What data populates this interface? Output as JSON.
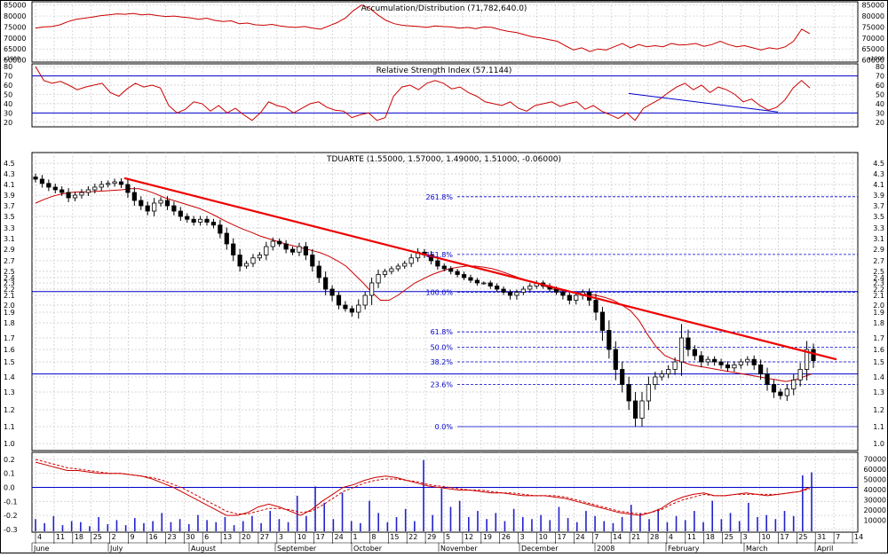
{
  "chart_data": [
    {
      "panel": "ad",
      "type": "line",
      "title": "Accumulation/Distribution (71,782,640.0)",
      "y_ticks": [
        85000,
        80000,
        75000,
        70000,
        65000,
        60000
      ],
      "y_tick_labels": [
        "85000",
        "80000",
        "75000",
        "70000",
        "65000",
        "60000"
      ],
      "y_unit_label": "x1000",
      "ylim": [
        59000,
        86500
      ],
      "series": [
        {
          "color": "#cc0000",
          "values": [
            74500,
            75000,
            75200,
            76000,
            77500,
            78500,
            79000,
            79500,
            80200,
            80500,
            81000,
            80800,
            81200,
            80500,
            80800,
            80200,
            79800,
            80000,
            79500,
            79200,
            78500,
            79000,
            78000,
            77500,
            77800,
            76500,
            76800,
            76000,
            75800,
            76200,
            75500,
            75000,
            74800,
            75200,
            74500,
            74000,
            75500,
            77000,
            79000,
            82500,
            85000,
            83500,
            80500,
            78000,
            76500,
            75800,
            75500,
            75200,
            74800,
            75500,
            75200,
            75000,
            74500,
            74800,
            74200,
            75000,
            74800,
            73800,
            73000,
            72500,
            71500,
            70500,
            70000,
            69200,
            68500,
            66500,
            64500,
            65500,
            63800,
            65000,
            64500,
            66000,
            67500,
            65500,
            67000,
            66000,
            66500,
            66000,
            67500,
            66800,
            67000,
            67500,
            66200,
            67000,
            68500,
            67000,
            66000,
            66500,
            65500,
            64500,
            65500,
            65000,
            66000,
            68500,
            74000,
            72000
          ]
        }
      ]
    },
    {
      "panel": "rsi",
      "type": "line",
      "title": "Relative Strength Index (57.1144)",
      "y_ticks": [
        80,
        70,
        60,
        50,
        40,
        30,
        20
      ],
      "y_tick_labels": [
        "80",
        "70",
        "60",
        "50",
        "40",
        "30",
        "20"
      ],
      "ylim": [
        15,
        83
      ],
      "reference_lines": [
        70,
        30
      ],
      "series": [
        {
          "color": "#cc0000",
          "values": [
            80,
            65,
            62,
            64,
            60,
            55,
            58,
            60,
            62,
            52,
            48,
            56,
            62,
            58,
            60,
            57,
            38,
            30,
            34,
            42,
            40,
            32,
            38,
            30,
            35,
            28,
            22,
            30,
            42,
            38,
            36,
            30,
            35,
            40,
            42,
            36,
            33,
            32,
            25,
            28,
            30,
            22,
            25,
            48,
            58,
            60,
            55,
            62,
            65,
            62,
            56,
            58,
            52,
            48,
            42,
            40,
            38,
            42,
            35,
            32,
            38,
            40,
            42,
            37,
            40,
            42,
            34,
            38,
            32,
            28,
            24,
            30,
            22,
            35,
            40,
            45,
            52,
            58,
            62,
            55,
            60,
            52,
            58,
            55,
            50,
            42,
            45,
            38,
            33,
            36,
            44,
            57,
            65,
            57
          ]
        },
        {
          "color": "#0000cc",
          "name": "",
          "values": [
            51,
            31
          ]
        }
      ]
    },
    {
      "panel": "price",
      "type": "candlestick",
      "title": "TDUARTE (1.55000, 1.57000, 1.49000, 1.51000, -0.06000)",
      "y_ticks": [
        4.5,
        4.3,
        4.1,
        3.9,
        3.7,
        3.5,
        3.3,
        3.1,
        2.9,
        2.7,
        2.5,
        2.4,
        2.3,
        2.2,
        2.1,
        2.0,
        1.9,
        1.8,
        1.7,
        1.6,
        1.5,
        1.4,
        1.3,
        1.2,
        1.1,
        1.0
      ],
      "y_tick_labels": [
        "4.5",
        "4.3",
        "4.1",
        "3.9",
        "3.7",
        "3.5",
        "3.3",
        "3.1",
        "2.9",
        "2.7",
        "2.5",
        "2.4",
        "2.3",
        "2.2",
        "2.1",
        "2.0",
        "1.9",
        "1.8",
        "1.7",
        "1.6",
        "1.5",
        "1.4",
        "1.3",
        "1.2",
        "1.1",
        "1.0"
      ],
      "fibonacci": [
        {
          "label": "261.8%",
          "value": 3.87
        },
        {
          "label": "161.8%",
          "value": 2.81
        },
        {
          "label": "100.0%",
          "value": 2.15
        },
        {
          "label": "61.8%",
          "value": 1.74
        },
        {
          "label": "50.0%",
          "value": 1.62
        },
        {
          "label": "38.2%",
          "value": 1.5
        },
        {
          "label": "23.6%",
          "value": 1.35
        },
        {
          "label": "0.0%",
          "value": 1.1
        }
      ],
      "horizontal_lines": [
        2.16,
        1.42
      ],
      "trendline": {
        "from": 4.22,
        "to": 1.52,
        "color": "#ee0000"
      },
      "close_values": [
        4.2,
        4.12,
        4.05,
        4.0,
        3.95,
        3.85,
        3.9,
        3.95,
        4.0,
        4.05,
        4.1,
        4.12,
        4.15,
        4.1,
        3.95,
        3.8,
        3.7,
        3.6,
        3.75,
        3.8,
        3.7,
        3.6,
        3.5,
        3.45,
        3.4,
        3.45,
        3.4,
        3.35,
        3.2,
        3.0,
        2.8,
        2.6,
        2.65,
        2.75,
        2.8,
        2.95,
        3.05,
        3.0,
        2.9,
        2.85,
        2.95,
        2.8,
        2.6,
        2.4,
        2.2,
        2.1,
        2.0,
        1.95,
        1.9,
        2.0,
        2.1,
        2.3,
        2.45,
        2.5,
        2.55,
        2.6,
        2.65,
        2.75,
        2.85,
        2.8,
        2.7,
        2.6,
        2.55,
        2.5,
        2.45,
        2.4,
        2.35,
        2.3,
        2.3,
        2.25,
        2.2,
        2.15,
        2.1,
        2.15,
        2.2,
        2.25,
        2.3,
        2.25,
        2.2,
        2.15,
        2.1,
        2.05,
        2.1,
        2.15,
        2.05,
        1.9,
        1.75,
        1.6,
        1.45,
        1.35,
        1.25,
        1.15,
        1.25,
        1.35,
        1.4,
        1.42,
        1.45,
        1.5,
        1.7,
        1.6,
        1.55,
        1.5,
        1.52,
        1.5,
        1.48,
        1.46,
        1.48,
        1.5,
        1.52,
        1.48,
        1.42,
        1.35,
        1.3,
        1.28,
        1.32,
        1.38,
        1.45,
        1.6,
        1.51
      ],
      "ma_values": [
        3.75,
        3.82,
        3.88,
        3.92,
        3.95,
        3.96,
        3.96,
        3.97,
        3.98,
        3.99,
        4.0,
        4.02,
        4.02,
        3.98,
        3.92,
        3.85,
        3.8,
        3.75,
        3.7,
        3.65,
        3.58,
        3.5,
        3.42,
        3.35,
        3.28,
        3.22,
        3.15,
        3.1,
        3.05,
        3.0,
        2.96,
        2.92,
        2.88,
        2.84,
        2.78,
        2.7,
        2.6,
        2.45,
        2.3,
        2.15,
        2.05,
        2.05,
        2.1,
        2.2,
        2.3,
        2.38,
        2.45,
        2.5,
        2.55,
        2.58,
        2.6,
        2.6,
        2.58,
        2.55,
        2.5,
        2.45,
        2.4,
        2.35,
        2.3,
        2.25,
        2.2,
        2.18,
        2.16,
        2.14,
        2.12,
        2.1,
        2.08,
        2.05,
        2.0,
        1.92,
        1.82,
        1.72,
        1.62,
        1.55,
        1.52,
        1.5,
        1.48,
        1.47,
        1.46,
        1.45,
        1.44,
        1.43,
        1.42,
        1.41,
        1.4,
        1.39,
        1.38,
        1.37,
        1.38,
        1.4,
        1.42
      ]
    },
    {
      "panel": "macd_volume",
      "type": "line",
      "y_ticks": [
        0.2,
        0.1,
        0.0,
        -0.1,
        -0.2,
        -0.3
      ],
      "y_tick_labels": [
        "0.2",
        "0.1",
        "0.0",
        "-0.1",
        "-0.2",
        "-0.3"
      ],
      "ylim": [
        -0.32,
        0.25
      ],
      "volume_ticks": [
        70000,
        60000,
        50000,
        40000,
        30000,
        20000,
        10000
      ],
      "volume_tick_labels": [
        "70000",
        "60000",
        "50000",
        "40000",
        "30000",
        "20000",
        "10000"
      ],
      "zero_line": 0.0,
      "series": [
        {
          "color": "#cc0000",
          "values": [
            0.18,
            0.16,
            0.14,
            0.12,
            0.12,
            0.11,
            0.1,
            0.1,
            0.1,
            0.09,
            0.08,
            0.06,
            0.03,
            0.0,
            -0.04,
            -0.08,
            -0.12,
            -0.16,
            -0.2,
            -0.2,
            -0.18,
            -0.14,
            -0.12,
            -0.14,
            -0.17,
            -0.2,
            -0.16,
            -0.1,
            -0.05,
            0.0,
            0.02,
            0.05,
            0.07,
            0.08,
            0.07,
            0.05,
            0.03,
            0.01,
            0.0,
            -0.01,
            -0.02,
            -0.02,
            -0.03,
            -0.04,
            -0.04,
            -0.05,
            -0.06,
            -0.06,
            -0.06,
            -0.07,
            -0.08,
            -0.1,
            -0.12,
            -0.14,
            -0.16,
            -0.18,
            -0.19,
            -0.2,
            -0.18,
            -0.15,
            -0.1,
            -0.07,
            -0.05,
            -0.04,
            -0.06,
            -0.06,
            -0.05,
            -0.04,
            -0.05,
            -0.06,
            -0.05,
            -0.04,
            -0.03,
            0.0
          ]
        },
        {
          "color": "#cc0000",
          "dashed": true,
          "values": [
            0.2,
            0.18,
            0.16,
            0.14,
            0.13,
            0.12,
            0.11,
            0.1,
            0.1,
            0.09,
            0.08,
            0.07,
            0.05,
            0.02,
            -0.01,
            -0.05,
            -0.09,
            -0.13,
            -0.17,
            -0.19,
            -0.19,
            -0.17,
            -0.15,
            -0.15,
            -0.16,
            -0.18,
            -0.17,
            -0.13,
            -0.08,
            -0.03,
            0.0,
            0.03,
            0.05,
            0.06,
            0.06,
            0.05,
            0.04,
            0.02,
            0.01,
            0.0,
            -0.01,
            -0.02,
            -0.02,
            -0.03,
            -0.04,
            -0.04,
            -0.05,
            -0.06,
            -0.06,
            -0.06,
            -0.07,
            -0.09,
            -0.11,
            -0.13,
            -0.15,
            -0.17,
            -0.18,
            -0.19,
            -0.18,
            -0.16,
            -0.12,
            -0.09,
            -0.07,
            -0.05,
            -0.06,
            -0.06,
            -0.05,
            -0.05,
            -0.05,
            -0.05,
            -0.05,
            -0.04,
            -0.03,
            -0.01
          ]
        }
      ],
      "volume_values": [
        12,
        8,
        15,
        6,
        10,
        9,
        5,
        14,
        7,
        11,
        6,
        13,
        8,
        10,
        18,
        9,
        12,
        7,
        16,
        11,
        9,
        14,
        6,
        10,
        15,
        8,
        20,
        12,
        9,
        35,
        15,
        44,
        28,
        12,
        38,
        10,
        8,
        30,
        18,
        9,
        14,
        22,
        10,
        70,
        16,
        42,
        24,
        30,
        14,
        20,
        12,
        18,
        10,
        22,
        14,
        12,
        16,
        11,
        24,
        13,
        9,
        20,
        15,
        10,
        8,
        14,
        26,
        18,
        12,
        22,
        9,
        15,
        11,
        20,
        9,
        30,
        12,
        18,
        10,
        28,
        14,
        16,
        12,
        20,
        15,
        55,
        58
      ]
    }
  ],
  "x_axis": {
    "day_labels": [
      "4",
      "11",
      "18",
      "25",
      "2",
      "9",
      "16",
      "23",
      "30",
      "6",
      "13",
      "20",
      "27",
      "3",
      "10",
      "17",
      "24",
      "1",
      "8",
      "15",
      "22",
      "29",
      "5",
      "12",
      "19",
      "26",
      "3",
      "10",
      "17",
      "24",
      "7",
      "14",
      "21",
      "28",
      "4",
      "11",
      "18",
      "25",
      "3",
      "10",
      "17",
      "25",
      "31",
      "7",
      "14"
    ],
    "month_labels": [
      "June",
      "July",
      "August",
      "September",
      "October",
      "November",
      "December",
      "2008",
      "February",
      "March",
      "April"
    ]
  }
}
